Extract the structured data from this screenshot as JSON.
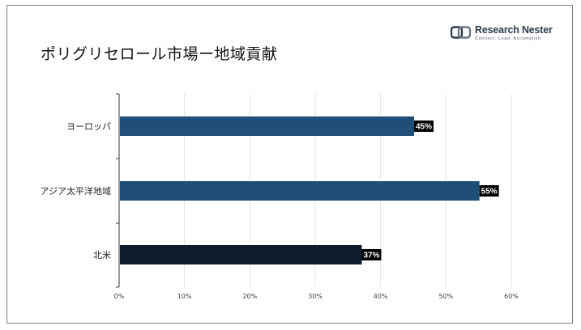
{
  "title": "ポリグリセロール市場ー地域貢献",
  "logo": {
    "name": "Research Nester",
    "tagline": "Connect. Lead. Accomplish"
  },
  "colors": {
    "bar_europe": "#1f4e79",
    "bar_apac": "#1f4e79",
    "bar_north_america": "#0d1b2a",
    "label_bg": "#000000",
    "grid": "#e3e3e3",
    "axis": "#555555"
  },
  "chart_data": {
    "type": "bar",
    "orientation": "horizontal",
    "categories": [
      "ヨーロッパ",
      "アジア太平洋地域",
      "北米"
    ],
    "values": [
      45,
      55,
      37
    ],
    "data_labels": [
      "45%",
      "55%",
      "37%"
    ],
    "xlim": [
      0,
      60
    ],
    "x_ticks": [
      0,
      10,
      20,
      30,
      40,
      50,
      60
    ],
    "x_tick_labels": [
      "0%",
      "10%",
      "20%",
      "30%",
      "40%",
      "50%",
      "60%"
    ],
    "grid": true,
    "legend": "none"
  }
}
